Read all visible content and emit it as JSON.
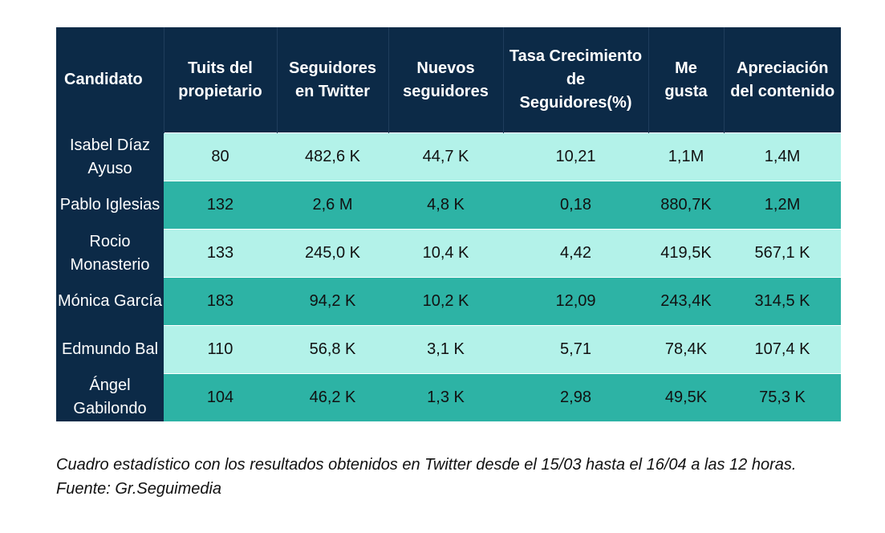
{
  "table": {
    "headers": [
      "Candidato",
      "Tuits del propietario",
      "Seguidores en Twitter",
      "Nuevos seguidores",
      "Tasa Crecimiento de Seguidores(%)",
      "Me gusta",
      "Apreciación del contenido"
    ],
    "rows": [
      {
        "cells": [
          "Isabel Díaz Ayuso",
          "80",
          "482,6 K",
          "44,7 K",
          "10,21",
          "1,1M",
          "1,4M"
        ]
      },
      {
        "cells": [
          "Pablo Iglesias",
          "132",
          "2,6 M",
          "4,8 K",
          "0,18",
          "880,7K",
          "1,2M"
        ]
      },
      {
        "cells": [
          "Rocio Monasterio",
          "133",
          "245,0 K",
          "10,4 K",
          "4,42",
          "419,5K",
          "567,1 K"
        ]
      },
      {
        "cells": [
          "Mónica García",
          "183",
          "94,2 K",
          "10,2 K",
          "12,09",
          "243,4K",
          "314,5 K"
        ]
      },
      {
        "cells": [
          "Edmundo Bal",
          "110",
          "56,8 K",
          "3,1 K",
          "5,71",
          "78,4K",
          "107,4 K"
        ]
      },
      {
        "cells": [
          "Ángel Gabilondo",
          "104",
          "46,2 K",
          "1,3 K",
          "2,98",
          "49,5K",
          "75,3 K"
        ]
      }
    ]
  },
  "caption": "Cuadro estadístico con los resultados obtenidos en Twitter desde el 15/03 hasta el 16/04 a las 12 horas.  Fuente: Gr.Seguimedia",
  "colors": {
    "header_bg": "#0c2a47",
    "row_light": "#b3f2e9",
    "row_dark": "#2db3a5"
  }
}
